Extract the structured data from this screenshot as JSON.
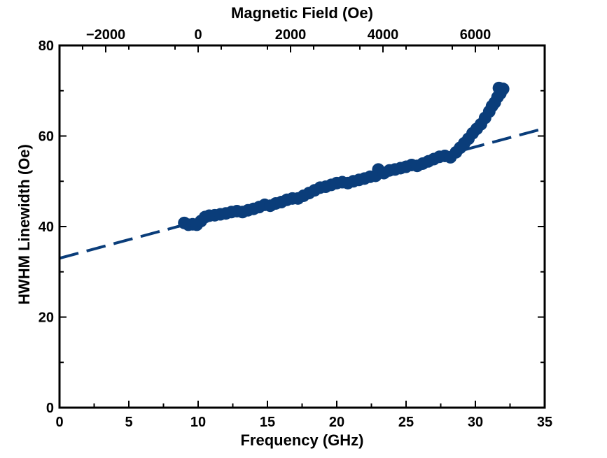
{
  "chart_data": {
    "type": "scatter",
    "title": "",
    "xlabel": "Frequency (GHz)",
    "ylabel": "HWHM Linewidth (Oe)",
    "x2label": "Magnetic Field (Oe)",
    "xlim": [
      0,
      35
    ],
    "ylim": [
      0,
      80
    ],
    "x2lim": [
      -3000,
      7500
    ],
    "xticks": [
      0,
      5,
      10,
      15,
      20,
      25,
      30,
      35
    ],
    "xtick_labels": [
      "0",
      "5",
      "10",
      "15",
      "20",
      "25",
      "30",
      "35"
    ],
    "yticks": [
      0,
      20,
      40,
      60,
      80
    ],
    "ytick_labels": [
      "0",
      "20",
      "40",
      "60",
      "80"
    ],
    "x2ticks": [
      -2000,
      0,
      2000,
      4000,
      6000
    ],
    "x2tick_labels": [
      "−2000",
      "0",
      "2000",
      "4000",
      "6000"
    ],
    "grid": false,
    "colors": {
      "marker": "#0a3d7a",
      "fit": "#0a3d7a",
      "axis": "#000000"
    },
    "series": [
      {
        "kind": "scatter",
        "points": [
          [
            9.0,
            40.8
          ],
          [
            9.3,
            40.4
          ],
          [
            9.6,
            40.5
          ],
          [
            9.9,
            40.4
          ],
          [
            10.2,
            41.2
          ],
          [
            10.5,
            42.1
          ],
          [
            10.8,
            42.4
          ],
          [
            11.2,
            42.5
          ],
          [
            11.6,
            42.7
          ],
          [
            12.0,
            42.9
          ],
          [
            12.4,
            43.2
          ],
          [
            12.8,
            43.4
          ],
          [
            13.2,
            43.2
          ],
          [
            13.6,
            43.6
          ],
          [
            14.0,
            43.9
          ],
          [
            14.4,
            44.3
          ],
          [
            14.8,
            44.8
          ],
          [
            15.2,
            44.6
          ],
          [
            15.6,
            45.1
          ],
          [
            16.0,
            45.4
          ],
          [
            16.4,
            45.9
          ],
          [
            16.8,
            46.2
          ],
          [
            17.2,
            46.2
          ],
          [
            17.6,
            46.8
          ],
          [
            18.0,
            47.4
          ],
          [
            18.4,
            48.0
          ],
          [
            18.8,
            48.6
          ],
          [
            19.2,
            48.8
          ],
          [
            19.6,
            49.2
          ],
          [
            20.0,
            49.6
          ],
          [
            20.4,
            49.8
          ],
          [
            20.8,
            49.6
          ],
          [
            21.2,
            50.0
          ],
          [
            21.6,
            50.3
          ],
          [
            22.0,
            50.6
          ],
          [
            22.4,
            51.0
          ],
          [
            22.8,
            51.2
          ],
          [
            23.0,
            52.6
          ],
          [
            23.4,
            51.8
          ],
          [
            23.8,
            52.4
          ],
          [
            24.2,
            52.6
          ],
          [
            24.6,
            52.9
          ],
          [
            25.0,
            53.2
          ],
          [
            25.4,
            53.6
          ],
          [
            25.8,
            53.4
          ],
          [
            26.2,
            53.9
          ],
          [
            26.6,
            54.4
          ],
          [
            27.0,
            54.9
          ],
          [
            27.4,
            55.4
          ],
          [
            27.8,
            55.6
          ],
          [
            28.2,
            55.3
          ],
          [
            28.6,
            56.4
          ],
          [
            28.9,
            57.4
          ],
          [
            29.2,
            58.4
          ],
          [
            29.5,
            59.4
          ],
          [
            29.8,
            60.6
          ],
          [
            30.1,
            61.6
          ],
          [
            30.4,
            62.6
          ],
          [
            30.7,
            64.0
          ],
          [
            31.0,
            65.4
          ],
          [
            31.2,
            66.6
          ],
          [
            31.4,
            67.4
          ],
          [
            31.6,
            68.6
          ],
          [
            31.8,
            69.4
          ],
          [
            32.0,
            70.4
          ],
          [
            31.7,
            70.6
          ]
        ]
      },
      {
        "kind": "fit-line",
        "style": "dashed",
        "points": [
          [
            0,
            33.0
          ],
          [
            35,
            61.7
          ]
        ]
      }
    ]
  }
}
